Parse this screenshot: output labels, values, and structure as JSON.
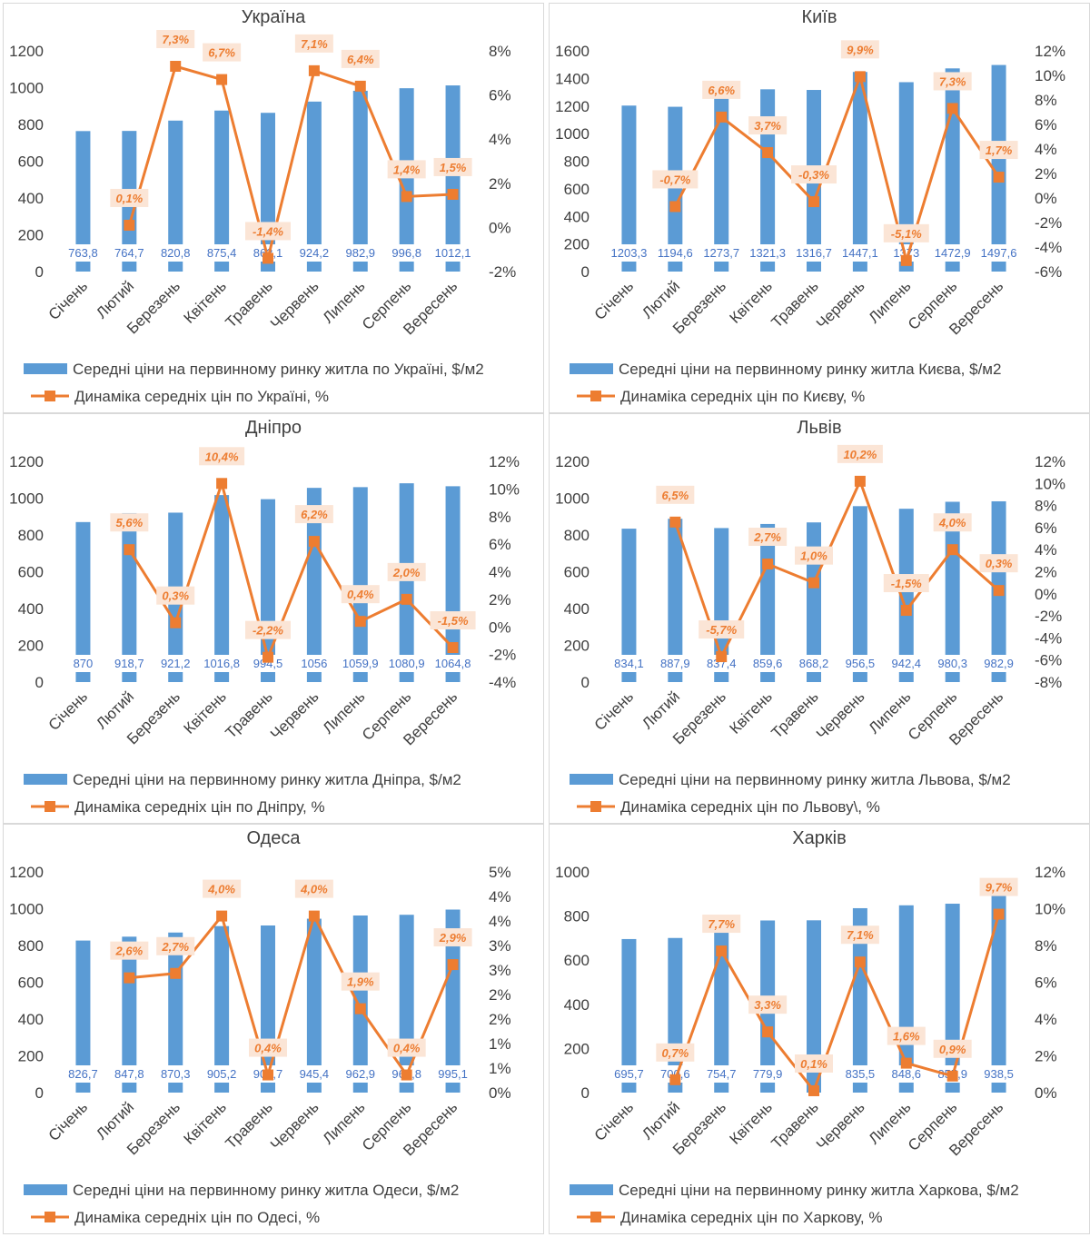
{
  "colors": {
    "bars": "#5b9bd5",
    "line": "#ed7d31",
    "label_bg": "#fbe5d6",
    "text": "#404040",
    "bar_label": "#4472c4"
  },
  "chart_data": [
    {
      "type": "bar",
      "title": "Україна",
      "categories": [
        "Січень",
        "Лютий",
        "Березень",
        "Квітень",
        "Травень",
        "Червень",
        "Липень",
        "Серпень",
        "Вересень"
      ],
      "series": [
        {
          "name": "Середні ціни на первинному ринку житла по Україні, $/м2",
          "type": "bar",
          "axis": "left",
          "values": [
            763.8,
            764.7,
            820.8,
            875.4,
            863.1,
            924.2,
            982.9,
            996.8,
            1012.1
          ],
          "labels": [
            "763,8",
            "764,7",
            "820,8",
            "875,4",
            "863,1",
            "924,2",
            "982,9",
            "996,8",
            "1012,1"
          ]
        },
        {
          "name": "Динаміка середніх цін по Україні, %",
          "type": "line",
          "axis": "right",
          "values": [
            null,
            0.1,
            7.3,
            6.7,
            -1.4,
            7.1,
            6.4,
            1.4,
            1.5
          ],
          "labels": [
            null,
            "0,1%",
            "7,3%",
            "6,7%",
            "-1,4%",
            "7,1%",
            "6,4%",
            "1,4%",
            "1,5%"
          ]
        }
      ],
      "y_left": {
        "min": 0,
        "max": 1200,
        "ticks": [
          "0",
          "200",
          "400",
          "600",
          "800",
          "1000",
          "1200"
        ]
      },
      "y_right": {
        "min": -2,
        "max": 8,
        "ticks": [
          "-2%",
          "0%",
          "2%",
          "4%",
          "6%",
          "8%"
        ]
      }
    },
    {
      "type": "bar",
      "title": "Київ",
      "categories": [
        "Січень",
        "Лютий",
        "Березень",
        "Квітень",
        "Травень",
        "Червень",
        "Липень",
        "Серпень",
        "Вересень"
      ],
      "series": [
        {
          "name": "Середні ціни на первинному ринку житла Києва, $/м2",
          "type": "bar",
          "axis": "left",
          "values": [
            1203.3,
            1194.6,
            1273.7,
            1321.3,
            1316.7,
            1447.1,
            1373,
            1472.9,
            1497.6
          ],
          "labels": [
            "1203,3",
            "1194,6",
            "1273,7",
            "1321,3",
            "1316,7",
            "1447,1",
            "1373",
            "1472,9",
            "1497,6"
          ]
        },
        {
          "name": "Динаміка середніх цін по Києву, %",
          "type": "line",
          "axis": "right",
          "values": [
            null,
            -0.7,
            6.6,
            3.7,
            -0.3,
            9.9,
            -5.1,
            7.3,
            1.7
          ],
          "labels": [
            null,
            "-0,7%",
            "6,6%",
            "3,7%",
            "-0,3%",
            "9,9%",
            "-5,1%",
            "7,3%",
            "1,7%"
          ]
        }
      ],
      "y_left": {
        "min": 0,
        "max": 1600,
        "ticks": [
          "0",
          "200",
          "400",
          "600",
          "800",
          "1000",
          "1200",
          "1400",
          "1600"
        ]
      },
      "y_right": {
        "min": -6,
        "max": 12,
        "ticks": [
          "-6%",
          "-4%",
          "-2%",
          "0%",
          "2%",
          "4%",
          "6%",
          "8%",
          "10%",
          "12%"
        ]
      }
    },
    {
      "type": "bar",
      "title": "Дніпро",
      "categories": [
        "Січень",
        "Лютий",
        "Березень",
        "Квітень",
        "Травень",
        "Червень",
        "Липень",
        "Серпень",
        "Вересень"
      ],
      "series": [
        {
          "name": "Середні ціни на первинному ринку житла Дніпра, $/м2",
          "type": "bar",
          "axis": "left",
          "values": [
            870,
            918.7,
            921.2,
            1016.8,
            994.5,
            1056,
            1059.9,
            1080.9,
            1064.8
          ],
          "labels": [
            "870",
            "918,7",
            "921,2",
            "1016,8",
            "994,5",
            "1056",
            "1059,9",
            "1080,9",
            "1064,8"
          ]
        },
        {
          "name": "Динаміка середніх цін по Дніпру, %",
          "type": "line",
          "axis": "right",
          "values": [
            null,
            5.6,
            0.3,
            10.4,
            -2.2,
            6.2,
            0.4,
            2.0,
            -1.5
          ],
          "labels": [
            null,
            "5,6%",
            "0,3%",
            "10,4%",
            "-2,2%",
            "6,2%",
            "0,4%",
            "2,0%",
            "-1,5%"
          ]
        }
      ],
      "y_left": {
        "min": 0,
        "max": 1200,
        "ticks": [
          "0",
          "200",
          "400",
          "600",
          "800",
          "1000",
          "1200"
        ]
      },
      "y_right": {
        "min": -4,
        "max": 12,
        "ticks": [
          "-4%",
          "-2%",
          "0%",
          "2%",
          "4%",
          "6%",
          "8%",
          "10%",
          "12%"
        ]
      }
    },
    {
      "type": "bar",
      "title": "Львів",
      "categories": [
        "Січень",
        "Лютий",
        "Березень",
        "Квітень",
        "Травень",
        "Червень",
        "Липень",
        "Серпень",
        "Вересень"
      ],
      "series": [
        {
          "name": "Середні ціни на первинному ринку житла Львова, $/м2",
          "type": "bar",
          "axis": "left",
          "values": [
            834.1,
            887.9,
            837.4,
            859.6,
            868.2,
            956.5,
            942.4,
            980.3,
            982.9
          ],
          "labels": [
            "834,1",
            "887,9",
            "837,4",
            "859,6",
            "868,2",
            "956,5",
            "942,4",
            "980,3",
            "982,9"
          ]
        },
        {
          "name": "Динаміка середніх цін по Львову\\, %",
          "type": "line",
          "axis": "right",
          "values": [
            null,
            6.5,
            -5.7,
            2.7,
            1.0,
            10.2,
            -1.5,
            4.0,
            0.3
          ],
          "labels": [
            null,
            "6,5%",
            "-5,7%",
            "2,7%",
            "1,0%",
            "10,2%",
            "-1,5%",
            "4,0%",
            "0,3%"
          ]
        }
      ],
      "y_left": {
        "min": 0,
        "max": 1200,
        "ticks": [
          "0",
          "200",
          "400",
          "600",
          "800",
          "1000",
          "1200"
        ]
      },
      "y_right": {
        "min": -8,
        "max": 12,
        "ticks": [
          "-8%",
          "-6%",
          "-4%",
          "-2%",
          "0%",
          "2%",
          "4%",
          "6%",
          "8%",
          "10%",
          "12%"
        ]
      }
    },
    {
      "type": "bar",
      "title": "Одеса",
      "categories": [
        "Січень",
        "Лютий",
        "Березень",
        "Квітень",
        "Травень",
        "Червень",
        "Липень",
        "Серпень",
        "Вересень"
      ],
      "series": [
        {
          "name": "Середні ціни на первинному ринку житла Одеси, $/м2",
          "type": "bar",
          "axis": "left",
          "values": [
            826.7,
            847.8,
            870.3,
            905.2,
            908.7,
            945.4,
            962.9,
            966.8,
            995.1
          ],
          "labels": [
            "826,7",
            "847,8",
            "870,3",
            "905,2",
            "908,7",
            "945,4",
            "962,9",
            "966,8",
            "995,1"
          ]
        },
        {
          "name": "Динаміка середніх цін по Одесі, %",
          "type": "line",
          "axis": "right",
          "values": [
            null,
            2.6,
            2.7,
            4.0,
            0.4,
            4.0,
            1.9,
            0.4,
            2.9
          ],
          "labels": [
            null,
            "2,6%",
            "2,7%",
            "4,0%",
            "0,4%",
            "4,0%",
            "1,9%",
            "0,4%",
            "2,9%"
          ]
        }
      ],
      "y_left": {
        "min": 0,
        "max": 1200,
        "ticks": [
          "0",
          "200",
          "400",
          "600",
          "800",
          "1000",
          "1200"
        ]
      },
      "y_right": {
        "min": 0,
        "max": 5,
        "ticks": [
          "0%",
          "1%",
          "1%",
          "2%",
          "2%",
          "3%",
          "3%",
          "4%",
          "4%",
          "5%"
        ]
      }
    },
    {
      "type": "bar",
      "title": "Харків",
      "categories": [
        "Січень",
        "Лютий",
        "Березень",
        "Квітень",
        "Травень",
        "Червень",
        "Липень",
        "Серпень",
        "Вересень"
      ],
      "series": [
        {
          "name": "Середні ціни на первинному ринку житла Харкова, $/м2",
          "type": "bar",
          "axis": "left",
          "values": [
            695.7,
            700.6,
            754.7,
            779.9,
            780.6,
            835.5,
            848.6,
            855.9,
            938.5
          ],
          "labels": [
            "695,7",
            "700,6",
            "754,7",
            "779,9",
            null,
            "835,5",
            "848,6",
            "855,9",
            "938,5"
          ]
        },
        {
          "name": "Динаміка середніх цін по Харкову, %",
          "type": "line",
          "axis": "right",
          "values": [
            null,
            0.7,
            7.7,
            3.3,
            0.1,
            7.1,
            1.6,
            0.9,
            9.7
          ],
          "labels": [
            null,
            "0,7%",
            "7,7%",
            "3,3%",
            "0,1%",
            "7,1%",
            "1,6%",
            "0,9%",
            "9,7%"
          ]
        }
      ],
      "y_left": {
        "min": 0,
        "max": 1000,
        "ticks": [
          "0",
          "200",
          "400",
          "600",
          "800",
          "1000"
        ]
      },
      "y_right": {
        "min": 0,
        "max": 12,
        "ticks": [
          "0%",
          "2%",
          "4%",
          "6%",
          "8%",
          "10%",
          "12%"
        ]
      }
    }
  ]
}
